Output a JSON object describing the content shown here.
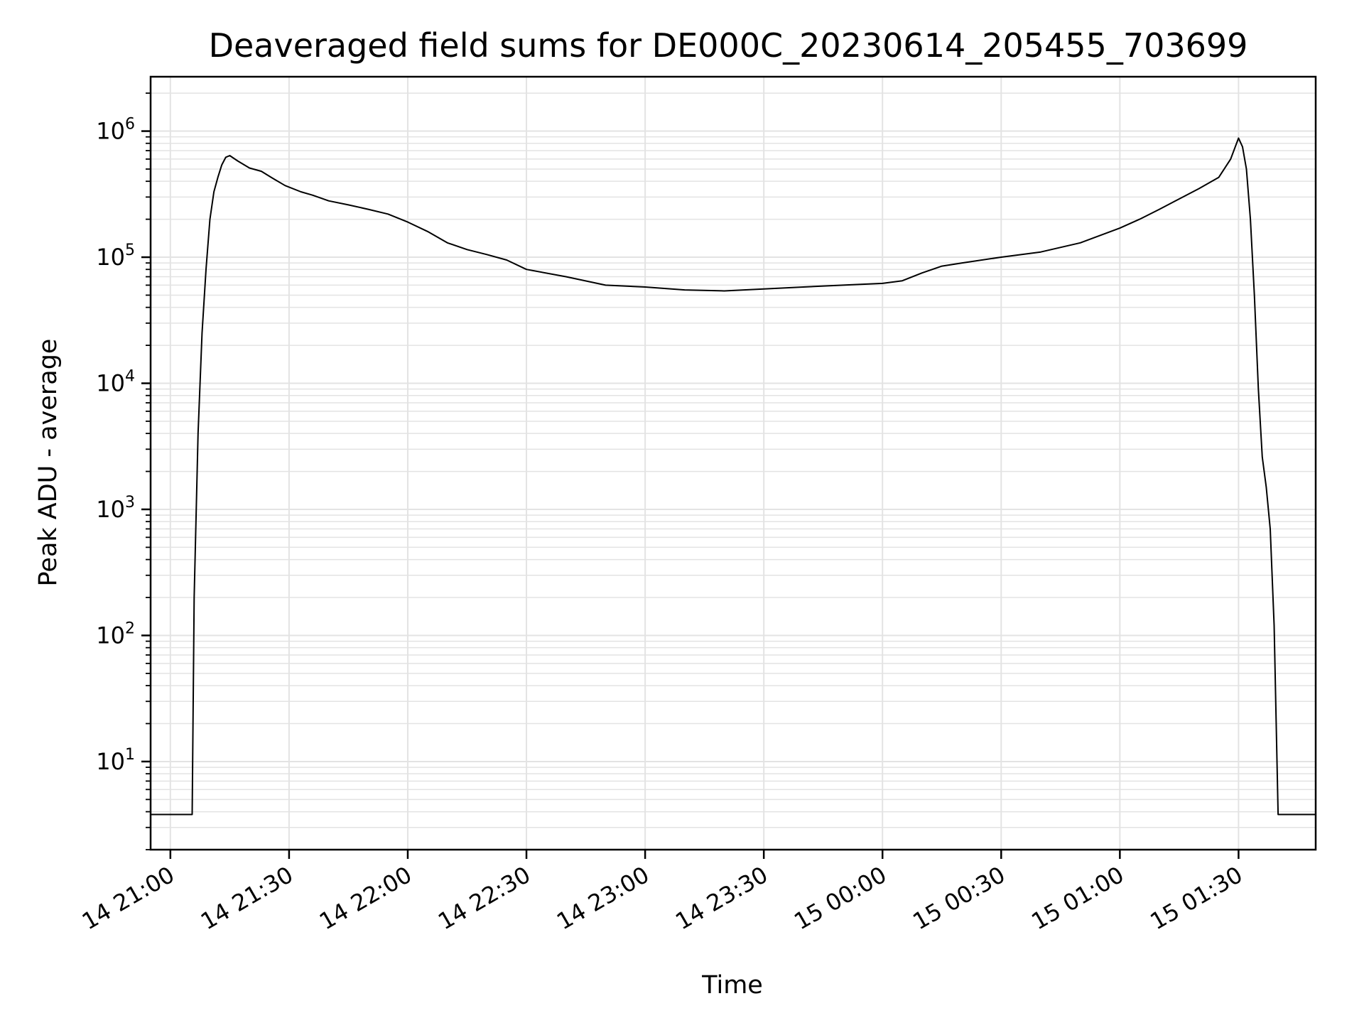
{
  "chart_data": {
    "type": "line",
    "title": "Deaveraged field sums for DE000C_20230614_205455_703699",
    "xlabel": "Time",
    "ylabel": "Peak ADU - average",
    "yscale": "log",
    "ylim": [
      2,
      2700000
    ],
    "xlim": [
      "2023-06-14 20:55:00",
      "2023-06-15 01:49:30"
    ],
    "xticks": [
      "14 21:00",
      "14 21:30",
      "14 22:00",
      "14 22:30",
      "14 23:00",
      "14 23:30",
      "15 00:00",
      "15 00:30",
      "15 01:00",
      "15 01:30"
    ],
    "yticks": [
      "10^1",
      "10^2",
      "10^3",
      "10^4",
      "10^5",
      "10^6"
    ],
    "grid": true,
    "line_color": "#000000",
    "grid_color": "#e3e3e3",
    "series": [
      {
        "x": [
          "2023-06-14 20:55:00",
          "2023-06-14 21:05:30",
          "2023-06-14 21:06:00",
          "2023-06-14 21:07:00",
          "2023-06-14 21:08:00",
          "2023-06-14 21:09:00",
          "2023-06-14 21:10:00",
          "2023-06-14 21:11:00",
          "2023-06-14 21:12:00",
          "2023-06-14 21:13:00",
          "2023-06-14 21:14:00",
          "2023-06-14 21:15:00",
          "2023-06-14 21:17:00",
          "2023-06-14 21:20:00",
          "2023-06-14 21:23:00",
          "2023-06-14 21:26:00",
          "2023-06-14 21:29:00",
          "2023-06-14 21:33:00",
          "2023-06-14 21:36:00",
          "2023-06-14 21:40:00",
          "2023-06-14 21:45:00",
          "2023-06-14 21:50:00",
          "2023-06-14 21:55:00",
          "2023-06-14 22:00:00",
          "2023-06-14 22:05:00",
          "2023-06-14 22:10:00",
          "2023-06-14 22:15:00",
          "2023-06-14 22:20:00",
          "2023-06-14 22:25:00",
          "2023-06-14 22:30:00",
          "2023-06-14 22:40:00",
          "2023-06-14 22:50:00",
          "2023-06-14 23:00:00",
          "2023-06-14 23:10:00",
          "2023-06-14 23:20:00",
          "2023-06-14 23:30:00",
          "2023-06-14 23:40:00",
          "2023-06-14 23:50:00",
          "2023-06-15 00:00:00",
          "2023-06-15 00:05:00",
          "2023-06-15 00:10:00",
          "2023-06-15 00:15:00",
          "2023-06-15 00:20:00",
          "2023-06-15 00:30:00",
          "2023-06-15 00:40:00",
          "2023-06-15 00:50:00",
          "2023-06-15 01:00:00",
          "2023-06-15 01:05:00",
          "2023-06-15 01:10:00",
          "2023-06-15 01:15:00",
          "2023-06-15 01:20:00",
          "2023-06-15 01:25:00",
          "2023-06-15 01:28:00",
          "2023-06-15 01:30:00",
          "2023-06-15 01:31:00",
          "2023-06-15 01:32:00",
          "2023-06-15 01:33:00",
          "2023-06-15 01:34:00",
          "2023-06-15 01:35:00",
          "2023-06-15 01:36:00",
          "2023-06-15 01:37:00",
          "2023-06-15 01:38:00",
          "2023-06-15 01:39:00",
          "2023-06-15 01:40:00",
          "2023-06-15 01:40:30",
          "2023-06-15 01:49:30"
        ],
        "y": [
          3.8,
          3.8,
          200,
          4000,
          25000,
          80000,
          200000,
          330000,
          430000,
          540000,
          620000,
          640000,
          580000,
          510000,
          480000,
          420000,
          370000,
          330000,
          310000,
          280000,
          260000,
          240000,
          220000,
          190000,
          160000,
          130000,
          115000,
          105000,
          95000,
          80000,
          70000,
          60000,
          58000,
          55000,
          54000,
          56000,
          58000,
          60000,
          62000,
          65000,
          75000,
          85000,
          90000,
          100000,
          110000,
          130000,
          170000,
          200000,
          240000,
          290000,
          350000,
          430000,
          600000,
          880000,
          750000,
          500000,
          200000,
          50000,
          9000,
          2600,
          1500,
          700,
          120,
          3.8,
          3.8,
          3.8
        ]
      }
    ]
  }
}
